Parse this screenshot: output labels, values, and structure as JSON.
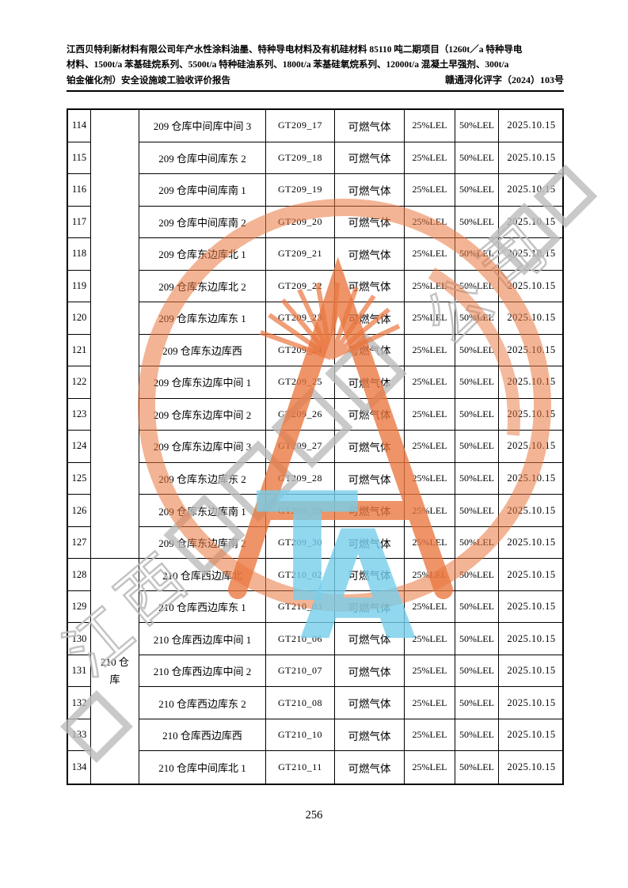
{
  "page": {
    "header_lines": [
      "江西贝特利新材料有限公司年产水性涂料油墨、特种导电材料及有机硅材料 85110 吨二期项目（1260t／a 特种导电",
      "材料、1500t/a 苯基硅烷系列、5500t/a 特种硅油系列、1800t/a 苯基硅氧烷系列、12000t/a 混凝土早强剂、300t/a",
      "铂金催化剂）安全设施竣工验收评价报告"
    ],
    "doc_number": "赣通浔化评字（2024）103号",
    "page_number": "256"
  },
  "table": {
    "groups": [
      {
        "label": "",
        "row_span": 14
      },
      {
        "label": "210 仓库",
        "row_span": 7
      }
    ],
    "rows": [
      {
        "seq": "114",
        "location": "209 仓库中间库中间 3",
        "code": "GT209_17",
        "gas": "可燃气体",
        "low": "25%LEL",
        "high": "50%LEL",
        "date": "2025.10.15"
      },
      {
        "seq": "115",
        "location": "209 仓库中间库东 2",
        "code": "GT209_18",
        "gas": "可燃气体",
        "low": "25%LEL",
        "high": "50%LEL",
        "date": "2025.10.15"
      },
      {
        "seq": "116",
        "location": "209 仓库中间库南 1",
        "code": "GT209_19",
        "gas": "可燃气体",
        "low": "25%LEL",
        "high": "50%LEL",
        "date": "2025.10.15"
      },
      {
        "seq": "117",
        "location": "209 仓库中间库南 2",
        "code": "GT209_20",
        "gas": "可燃气体",
        "low": "25%LEL",
        "high": "50%LEL",
        "date": "2025.10.15"
      },
      {
        "seq": "118",
        "location": "209 仓库东边库北 1",
        "code": "GT209_21",
        "gas": "可燃气体",
        "low": "25%LEL",
        "high": "50%LEL",
        "date": "2025.10.15"
      },
      {
        "seq": "119",
        "location": "209 仓库东边库北 2",
        "code": "GT209_22",
        "gas": "可燃气体",
        "low": "25%LEL",
        "high": "50%LEL",
        "date": "2025.10.15"
      },
      {
        "seq": "120",
        "location": "209 仓库东边库东 1",
        "code": "GT209_23",
        "gas": "可燃气体",
        "low": "25%LEL",
        "high": "50%LEL",
        "date": "2025.10.15"
      },
      {
        "seq": "121",
        "location": "209 仓库东边库西",
        "code": "GT209_24",
        "gas": "可燃气体",
        "low": "25%LEL",
        "high": "50%LEL",
        "date": "2025.10.15"
      },
      {
        "seq": "122",
        "location": "209 仓库东边库中间 1",
        "code": "GT209_25",
        "gas": "可燃气体",
        "low": "25%LEL",
        "high": "50%LEL",
        "date": "2025.10.15"
      },
      {
        "seq": "123",
        "location": "209 仓库东边库中间 2",
        "code": "GT209_26",
        "gas": "可燃气体",
        "low": "25%LEL",
        "high": "50%LEL",
        "date": "2025.10.15"
      },
      {
        "seq": "124",
        "location": "209 仓库东边库中间 3",
        "code": "GT209_27",
        "gas": "可燃气体",
        "low": "25%LEL",
        "high": "50%LEL",
        "date": "2025.10.15"
      },
      {
        "seq": "125",
        "location": "209 仓库东边库东 2",
        "code": "GT209_28",
        "gas": "可燃气体",
        "low": "25%LEL",
        "high": "50%LEL",
        "date": "2025.10.15"
      },
      {
        "seq": "126",
        "location": "209 仓库东边库南 1",
        "code": "GT209_29",
        "gas": "可燃气体",
        "low": "25%LEL",
        "high": "50%LEL",
        "date": "2025.10.15"
      },
      {
        "seq": "127",
        "location": "209 仓库东边库南 2",
        "code": "GT209_30",
        "gas": "可燃气体",
        "low": "25%LEL",
        "high": "50%LEL",
        "date": "2025.10.15"
      },
      {
        "seq": "128",
        "location": "210 仓库西边库北",
        "code": "GT210_02",
        "gas": "可燃气体",
        "low": "25%LEL",
        "high": "50%LEL",
        "date": "2025.10.15"
      },
      {
        "seq": "129",
        "location": "210 仓库西边库东 1",
        "code": "GT210_03",
        "gas": "可燃气体",
        "low": "25%LEL",
        "high": "50%LEL",
        "date": "2025.10.15"
      },
      {
        "seq": "130",
        "location": "210 仓库西边库中间 1",
        "code": "GT210_06",
        "gas": "可燃气体",
        "low": "25%LEL",
        "high": "50%LEL",
        "date": "2025.10.15"
      },
      {
        "seq": "131",
        "location": "210 仓库西边库中间 2",
        "code": "GT210_07",
        "gas": "可燃气体",
        "low": "25%LEL",
        "high": "50%LEL",
        "date": "2025.10.15"
      },
      {
        "seq": "132",
        "location": "210 仓库西边库东 2",
        "code": "GT210_08",
        "gas": "可燃气体",
        "low": "25%LEL",
        "high": "50%LEL",
        "date": "2025.10.15"
      },
      {
        "seq": "133",
        "location": "210 仓库西边库西",
        "code": "GT210_10",
        "gas": "可燃气体",
        "low": "25%LEL",
        "high": "50%LEL",
        "date": "2025.10.15"
      },
      {
        "seq": "134",
        "location": "210 仓库中间库北 1",
        "code": "GT210_11",
        "gas": "可燃气体",
        "low": "25%LEL",
        "high": "50%LEL",
        "date": "2025.10.15"
      }
    ]
  },
  "watermark": {
    "center_letters": "TA",
    "fragment_bottom_left": "江西",
    "fragment_top_right": "公司",
    "stamp_color": "#e9763e",
    "letters_color": "#76cee9",
    "gray_color": "#bebebe"
  }
}
